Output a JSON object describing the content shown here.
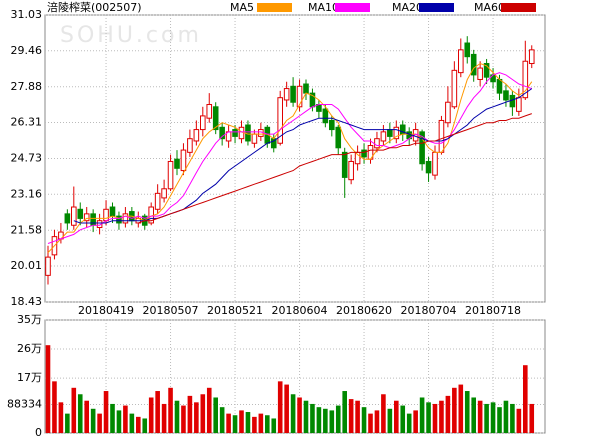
{
  "chart_data": {
    "type": "candlestick",
    "title": "涪陵榨菜(002507)",
    "watermark": "SOHU.com",
    "categories": [
      null,
      null,
      null,
      null,
      null,
      null,
      null,
      null,
      null,
      "20180419",
      null,
      null,
      null,
      null,
      null,
      null,
      null,
      null,
      null,
      "20180507",
      null,
      null,
      null,
      null,
      null,
      null,
      null,
      null,
      null,
      "20180521",
      null,
      null,
      null,
      null,
      null,
      null,
      null,
      null,
      null,
      "20180604",
      null,
      null,
      null,
      null,
      null,
      null,
      null,
      null,
      null,
      "20180620",
      null,
      null,
      null,
      null,
      null,
      null,
      null,
      null,
      null,
      "20180704",
      null,
      null,
      null,
      null,
      null,
      null,
      null,
      null,
      null,
      "20180718",
      null,
      null,
      null,
      null,
      null,
      null
    ],
    "open": [
      19.6,
      20.5,
      21.2,
      22.3,
      21.8,
      22.5,
      22.0,
      22.3,
      21.7,
      22.0,
      22.6,
      22.2,
      21.9,
      22.4,
      21.9,
      22.2,
      21.9,
      22.5,
      23.0,
      23.4,
      24.7,
      24.2,
      25.0,
      25.5,
      26.0,
      26.5,
      27.0,
      26.1,
      25.5,
      26.0,
      25.6,
      26.2,
      25.4,
      25.7,
      26.1,
      25.6,
      25.4,
      27.3,
      27.9,
      27.0,
      28.0,
      27.6,
      27.1,
      26.9,
      26.4,
      26.1,
      25.0,
      23.8,
      24.5,
      25.1,
      24.7,
      25.2,
      25.5,
      26.0,
      25.6,
      26.2,
      25.9,
      25.5,
      25.9,
      24.6,
      24.0,
      25.0,
      26.3,
      27.0,
      28.5,
      29.8,
      29.3,
      28.2,
      28.9,
      28.4,
      28.2,
      27.7,
      27.5,
      26.8,
      27.4,
      28.9
    ],
    "high": [
      20.9,
      21.6,
      21.9,
      22.5,
      23.5,
      22.8,
      22.6,
      22.5,
      22.3,
      22.9,
      22.8,
      22.4,
      22.6,
      22.6,
      22.4,
      22.3,
      22.8,
      23.6,
      23.8,
      24.9,
      25.1,
      25.4,
      26.0,
      26.4,
      27.0,
      27.6,
      27.2,
      26.3,
      26.2,
      26.2,
      26.4,
      26.4,
      26.0,
      26.3,
      26.2,
      25.8,
      27.7,
      28.1,
      28.3,
      28.2,
      28.2,
      27.8,
      27.3,
      27.1,
      26.6,
      26.2,
      25.2,
      24.9,
      25.3,
      25.4,
      25.6,
      25.9,
      26.2,
      26.3,
      26.4,
      26.4,
      26.1,
      26.3,
      26.0,
      24.8,
      25.3,
      26.6,
      27.9,
      29.0,
      30.0,
      30.1,
      29.5,
      29.0,
      29.1,
      28.7,
      28.4,
      28.0,
      27.7,
      27.8,
      29.9,
      29.7
    ],
    "low": [
      19.2,
      20.3,
      21.0,
      21.6,
      21.6,
      21.8,
      21.7,
      21.5,
      21.4,
      21.8,
      21.9,
      21.6,
      21.7,
      21.8,
      21.7,
      21.6,
      21.8,
      22.3,
      22.8,
      23.3,
      24.0,
      24.0,
      24.8,
      25.3,
      25.7,
      26.3,
      25.8,
      25.3,
      25.2,
      25.4,
      25.4,
      25.3,
      25.2,
      25.5,
      25.2,
      25.0,
      25.3,
      27.0,
      27.0,
      26.8,
      27.3,
      26.8,
      26.5,
      26.1,
      25.7,
      24.9,
      23.0,
      23.6,
      24.2,
      24.5,
      24.5,
      25.0,
      25.3,
      25.4,
      25.4,
      25.5,
      25.3,
      25.3,
      24.2,
      23.7,
      23.8,
      24.9,
      26.1,
      26.9,
      28.3,
      28.9,
      28.1,
      27.9,
      28.0,
      27.8,
      27.3,
      27.0,
      26.6,
      26.6,
      27.3,
      28.7
    ],
    "close": [
      20.4,
      21.3,
      21.5,
      21.9,
      22.6,
      22.1,
      22.3,
      21.8,
      22.0,
      22.5,
      22.2,
      21.9,
      22.3,
      22.0,
      22.1,
      21.8,
      22.6,
      23.2,
      23.4,
      24.6,
      24.3,
      25.1,
      25.6,
      26.0,
      26.6,
      27.1,
      26.0,
      25.6,
      25.9,
      25.7,
      26.1,
      25.5,
      25.8,
      26.0,
      25.4,
      25.2,
      27.4,
      27.8,
      27.2,
      27.9,
      27.6,
      27.0,
      26.8,
      26.3,
      26.0,
      25.2,
      23.9,
      24.6,
      25.0,
      24.8,
      25.3,
      25.6,
      25.9,
      25.7,
      26.1,
      25.8,
      25.6,
      26.0,
      24.5,
      24.1,
      25.0,
      26.4,
      27.2,
      28.6,
      29.5,
      29.2,
      28.4,
      28.7,
      28.3,
      28.1,
      27.6,
      27.3,
      27.0,
      27.4,
      29.0,
      29.5
    ],
    "up_color": "#e00000",
    "down_color": "#008800",
    "series": [
      {
        "name": "MA5",
        "color": "#ff9900",
        "values": [
          20.6,
          20.9,
          21.2,
          21.5,
          21.5,
          21.9,
          22.1,
          22.1,
          22.1,
          22.1,
          22.2,
          22.1,
          22.2,
          22.2,
          22.1,
          22.0,
          22.2,
          22.3,
          22.6,
          23.1,
          23.6,
          24.1,
          24.6,
          25.1,
          25.6,
          25.9,
          26.1,
          26.3,
          26.2,
          26.1,
          25.9,
          25.8,
          25.8,
          25.8,
          25.8,
          25.6,
          26.0,
          26.4,
          26.6,
          27.1,
          27.6,
          27.5,
          27.3,
          27.0,
          26.6,
          26.3,
          25.6,
          25.2,
          24.9,
          24.7,
          24.7,
          25.1,
          25.3,
          25.5,
          25.7,
          25.8,
          25.8,
          25.8,
          25.6,
          25.2,
          25.0,
          25.0,
          25.4,
          26.3,
          27.3,
          28.2,
          28.7,
          28.9,
          28.8,
          28.5,
          28.2,
          28.0,
          27.7,
          27.5,
          27.7,
          28.1
        ]
      },
      {
        "name": "MA10",
        "color": "#ff00ff",
        "values": [
          21.0,
          21.1,
          21.2,
          21.3,
          21.4,
          21.6,
          21.7,
          21.8,
          21.8,
          22.0,
          22.1,
          22.1,
          22.2,
          22.1,
          22.2,
          22.1,
          22.2,
          22.2,
          22.3,
          22.6,
          22.8,
          23.1,
          23.6,
          24.1,
          24.6,
          25.0,
          25.4,
          25.7,
          25.9,
          25.9,
          25.9,
          25.9,
          25.9,
          25.9,
          25.8,
          25.8,
          26.0,
          26.2,
          26.4,
          26.6,
          26.8,
          27.0,
          27.1,
          27.1,
          27.1,
          26.9,
          26.5,
          26.1,
          25.8,
          25.5,
          25.5,
          25.3,
          25.3,
          25.2,
          25.3,
          25.4,
          25.6,
          25.8,
          25.7,
          25.5,
          25.4,
          25.4,
          25.6,
          26.0,
          26.5,
          27.0,
          27.4,
          27.7,
          28.1,
          28.4,
          28.5,
          28.4,
          28.2,
          28.0,
          27.9,
          27.8
        ]
      },
      {
        "name": "MA20",
        "color": "#0000aa",
        "values": [
          null,
          null,
          null,
          null,
          22.0,
          21.9,
          21.9,
          21.9,
          21.9,
          21.9,
          22.0,
          22.0,
          22.0,
          22.0,
          22.0,
          22.0,
          22.1,
          22.1,
          22.2,
          22.3,
          22.4,
          22.5,
          22.7,
          22.9,
          23.2,
          23.4,
          23.6,
          23.9,
          24.2,
          24.4,
          24.6,
          24.8,
          25.0,
          25.2,
          25.4,
          25.5,
          25.7,
          25.9,
          26.0,
          26.2,
          26.3,
          26.4,
          26.5,
          26.5,
          26.5,
          26.4,
          26.3,
          26.2,
          26.1,
          26.0,
          26.0,
          26.0,
          26.0,
          26.0,
          26.0,
          25.9,
          25.8,
          25.7,
          25.6,
          25.5,
          25.5,
          25.5,
          25.6,
          25.8,
          26.0,
          26.2,
          26.5,
          26.7,
          26.9,
          27.0,
          27.1,
          27.2,
          27.3,
          27.4,
          27.6,
          27.8
        ]
      },
      {
        "name": "MA60",
        "color": "#cc0000",
        "values": [
          null,
          null,
          null,
          null,
          null,
          null,
          null,
          null,
          null,
          null,
          null,
          null,
          null,
          null,
          21.9,
          22.0,
          22.0,
          22.1,
          22.2,
          22.3,
          22.4,
          22.5,
          22.6,
          22.7,
          22.8,
          22.9,
          23.0,
          23.1,
          23.2,
          23.3,
          23.4,
          23.5,
          23.6,
          23.7,
          23.8,
          23.9,
          24.0,
          24.1,
          24.2,
          24.4,
          24.5,
          24.6,
          24.7,
          24.8,
          24.9,
          24.9,
          24.9,
          25.0,
          25.0,
          25.0,
          25.1,
          25.1,
          25.1,
          25.2,
          25.2,
          25.3,
          25.3,
          25.4,
          25.4,
          25.5,
          25.5,
          25.6,
          25.7,
          25.8,
          25.9,
          26.0,
          26.1,
          26.2,
          26.3,
          26.3,
          26.4,
          26.4,
          26.5,
          26.5,
          26.6,
          26.7
        ]
      }
    ],
    "ylim": [
      18.43,
      31.03
    ],
    "yticks": [
      18.43,
      20.01,
      21.58,
      23.16,
      24.73,
      26.31,
      27.88,
      29.46,
      31.03
    ],
    "grid": true,
    "volume": {
      "values": [
        272000,
        160000,
        95000,
        60000,
        140000,
        120000,
        100000,
        75000,
        60000,
        130000,
        90000,
        70000,
        85000,
        60000,
        50000,
        45000,
        110000,
        130000,
        90000,
        140000,
        100000,
        85000,
        115000,
        95000,
        120000,
        140000,
        110000,
        80000,
        60000,
        55000,
        70000,
        65000,
        50000,
        60000,
        55000,
        45000,
        160000,
        150000,
        120000,
        110000,
        100000,
        90000,
        80000,
        75000,
        70000,
        85000,
        130000,
        105000,
        100000,
        80000,
        60000,
        70000,
        120000,
        75000,
        100000,
        85000,
        60000,
        70000,
        110000,
        95000,
        90000,
        100000,
        115000,
        140000,
        150000,
        130000,
        110000,
        100000,
        90000,
        95000,
        80000,
        100000,
        90000,
        75000,
        210000,
        90000
      ],
      "ylim": [
        0,
        350000
      ],
      "yticks": [
        0,
        88334,
        {
          "value": 170000,
          "label": "17万"
        },
        {
          "value": 260000,
          "label": "26万"
        },
        {
          "value": 350000,
          "label": "35万"
        }
      ]
    }
  }
}
